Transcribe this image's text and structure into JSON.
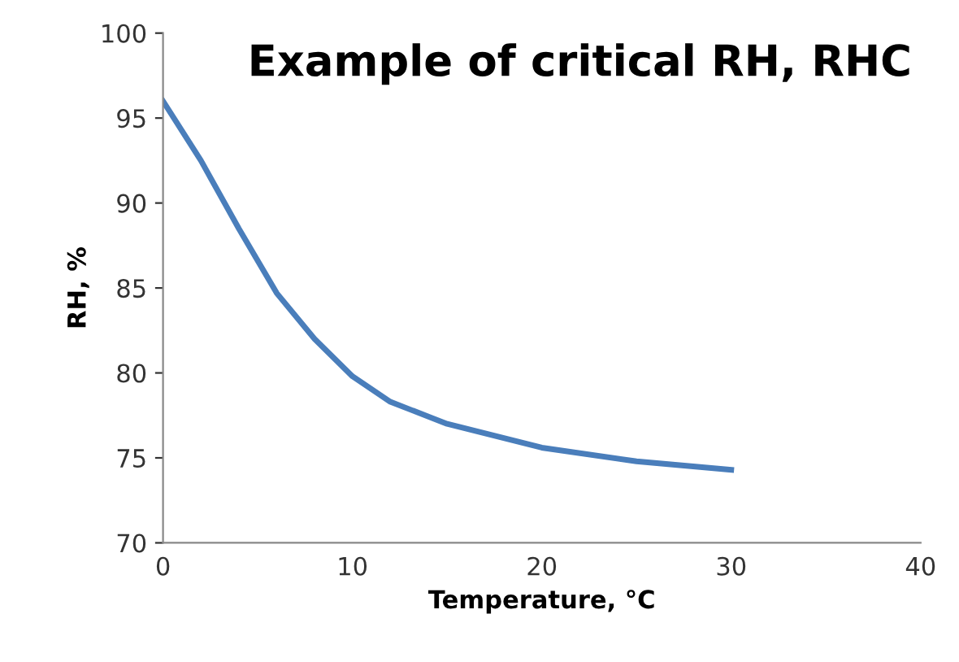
{
  "chart_data": {
    "type": "line",
    "title": "Example of critical RH, RHC",
    "xlabel": "Temperature, °C",
    "ylabel": "RH, %",
    "x": [
      0,
      2,
      4,
      6,
      8,
      10,
      12,
      15,
      20,
      25,
      30
    ],
    "series": [
      {
        "color": "#4a7ebb",
        "values": [
          96,
          92.5,
          88.5,
          84.7,
          82,
          79.8,
          78.3,
          77,
          75.6,
          74.8,
          74.3
        ]
      }
    ],
    "xlim": [
      0,
      40
    ],
    "xticks": [
      0,
      10,
      20,
      30,
      40
    ],
    "ylim": [
      70,
      100
    ],
    "yticks": [
      70,
      75,
      80,
      85,
      90,
      95,
      100
    ],
    "grid": false,
    "legend": false,
    "marker": "none",
    "line_style": "solid"
  }
}
